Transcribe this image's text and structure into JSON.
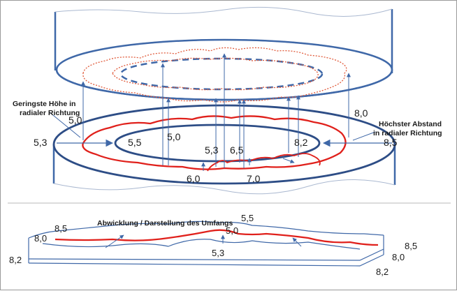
{
  "colors": {
    "outline": "#3f68a8",
    "outline_dark": "#2d4d86",
    "profile": "#e0201b",
    "profile_dotted": "#e05a3a"
  },
  "labels": {
    "min_height_line1": "Geringste Höhe in",
    "min_height_line2": "radialer Richtung",
    "max_distance_line1": "Höchster Abstand",
    "max_distance_line2": "in radialer Richtung",
    "development": "Abwicklung / Darstellung des Umfangs"
  },
  "ring_values": {
    "left_outer": "5,3",
    "left_upper": "5,0",
    "left_inner": "5,5",
    "center_upper": "5,0",
    "center_a": "5,3",
    "center_b": "6,5",
    "right_inner": "8,2",
    "right_upper": "8,0",
    "right_outer": "8,5",
    "bottom_a": "6,0",
    "bottom_b": "7.0"
  },
  "strip_values": {
    "left_upper": "8,5",
    "left_mid": "8,0",
    "left_lower": "8,2",
    "top_a": "5,5",
    "top_b": "5,0",
    "center": "5,3",
    "right_upper": "8,5",
    "right_mid": "8,0",
    "right_lower": "8,2"
  }
}
